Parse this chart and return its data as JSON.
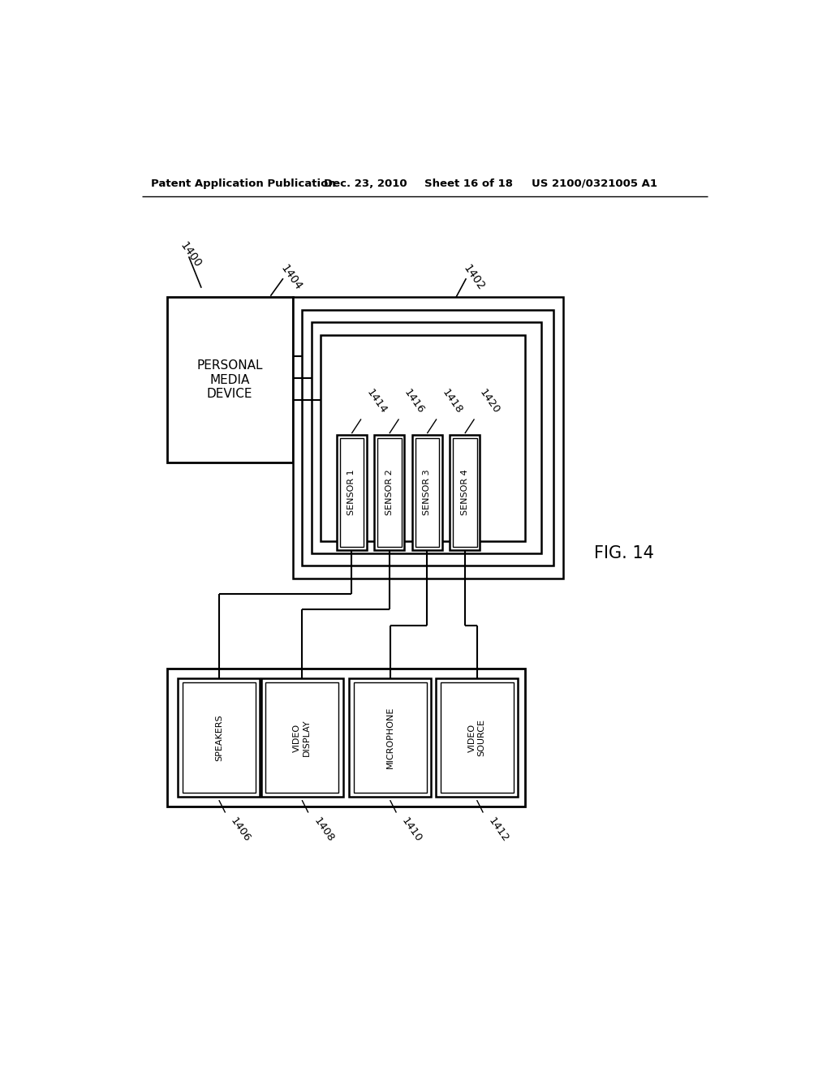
{
  "bg_color": "#ffffff",
  "header_text": "Patent Application Publication",
  "header_date": "Dec. 23, 2010",
  "header_sheet": "Sheet 16 of 18",
  "header_patent": "US 2100/0321005 A1",
  "fig_label": "FIG. 14",
  "label_1400": "1400",
  "label_1402": "1402",
  "label_1404": "1404",
  "label_1406": "1406",
  "label_1408": "1408",
  "label_1410": "1410",
  "label_1412": "1412",
  "label_1414": "1414",
  "label_1416": "1416",
  "label_1418": "1418",
  "label_1420": "1420",
  "pmd_text": "PERSONAL\nMEDIA\nDEVICE",
  "sensor_labels": [
    "SENSOR 1",
    "SENSOR 2",
    "SENSOR 3",
    "SENSOR 4"
  ],
  "bottom_labels": [
    "SPEAKERS",
    "VIDEO\nDISPLAY",
    "MICROPHONE",
    "VIDEO\nSOURCE"
  ],
  "line_color": "#000000",
  "text_color": "#000000"
}
